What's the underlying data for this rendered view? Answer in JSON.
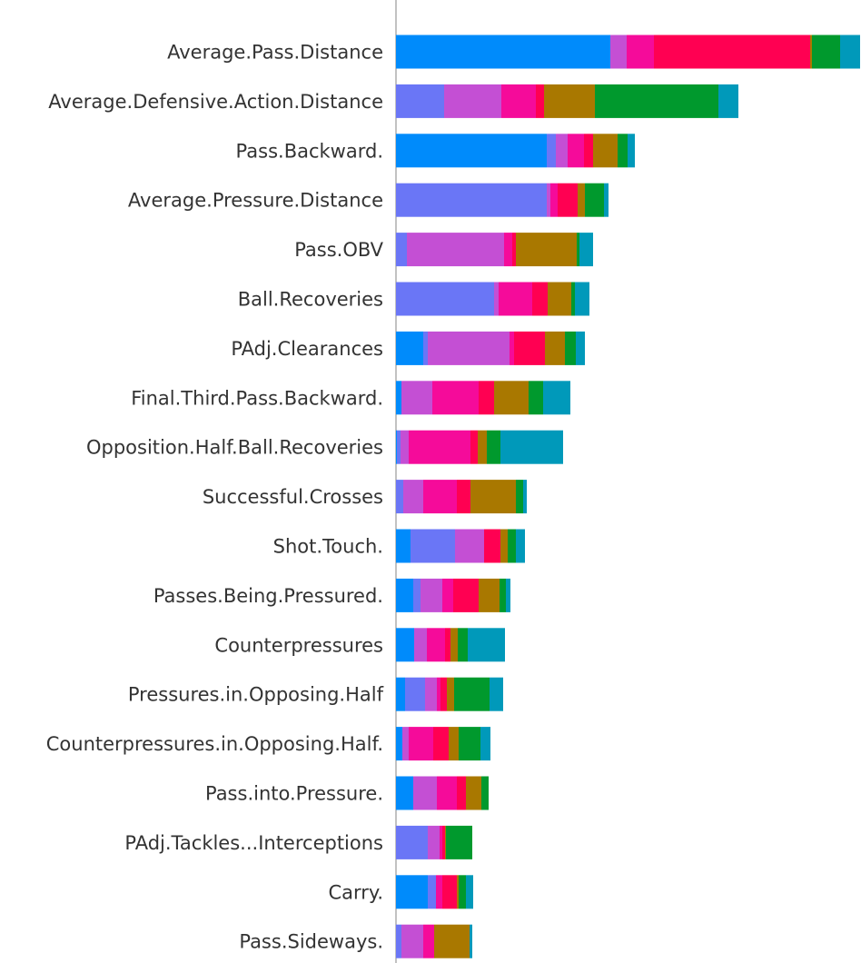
{
  "chart_data": {
    "type": "bar",
    "orientation": "horizontal",
    "stacked": true,
    "title": "",
    "xlabel": "",
    "ylabel": "",
    "xlim": [
      0,
      0.512
    ],
    "grid": false,
    "categories": [
      "Average.Pass.Distance",
      "Average.Defensive.Action.Distance",
      "Pass.Backward.",
      "Average.Pressure.Distance",
      "Pass.OBV",
      "Ball.Recoveries",
      "PAdj.Clearances",
      "Final.Third.Pass.Backward.",
      "Opposition.Half.Ball.Recoveries",
      "Successful.Crosses",
      "Shot.Touch.",
      "Passes.Being.Pressured.",
      "Counterpressures",
      "Pressures.in.Opposing.Half",
      "Counterpressures.in.Opposing.Half.",
      "Pass.into.Pressure.",
      "PAdj.Tackles...Interceptions",
      "Carry.",
      "Pass.Sideways."
    ],
    "series": [
      {
        "color": "#008bfb",
        "values": [
          0.236,
          0,
          0.166,
          0,
          0,
          0,
          0.03,
          0.006,
          0.001,
          0,
          0.016,
          0.019,
          0.02,
          0.01,
          0.007,
          0.019,
          0,
          0.035,
          0
        ]
      },
      {
        "color": "#6a76f6",
        "values": [
          0,
          0.053,
          0.01,
          0.166,
          0.012,
          0.108,
          0.005,
          0,
          0.004,
          0.008,
          0.049,
          0.008,
          0,
          0.022,
          0,
          0,
          0.035,
          0.009,
          0.006
        ]
      },
      {
        "color": "#c44fd4",
        "values": [
          0.018,
          0.063,
          0.013,
          0.004,
          0.107,
          0.005,
          0.09,
          0.034,
          0.009,
          0.022,
          0.032,
          0.024,
          0.014,
          0.013,
          0.007,
          0.026,
          0.013,
          0,
          0.024
        ]
      },
      {
        "color": "#f50b9a",
        "values": [
          0.03,
          0.038,
          0.018,
          0.008,
          0.009,
          0.037,
          0.005,
          0.051,
          0.068,
          0.037,
          0,
          0.012,
          0.02,
          0.004,
          0.027,
          0.022,
          0.003,
          0.007,
          0.012
        ]
      },
      {
        "color": "#ff0052",
        "values": [
          0.172,
          0.009,
          0.01,
          0.022,
          0.004,
          0.017,
          0.034,
          0.017,
          0.008,
          0.015,
          0.018,
          0.028,
          0.006,
          0.007,
          0.017,
          0.01,
          0.003,
          0.016,
          0
        ]
      },
      {
        "color": "#a97800",
        "values": [
          0.002,
          0.056,
          0.027,
          0.008,
          0.067,
          0.026,
          0.022,
          0.038,
          0.01,
          0.05,
          0.008,
          0.023,
          0.008,
          0.008,
          0.011,
          0.017,
          0.001,
          0.002,
          0.039
        ]
      },
      {
        "color": "#00992d",
        "values": [
          0.031,
          0.136,
          0.011,
          0.021,
          0.003,
          0.004,
          0.012,
          0.016,
          0.015,
          0.008,
          0.009,
          0.007,
          0.011,
          0.039,
          0.024,
          0.008,
          0.029,
          0.008,
          0
        ]
      },
      {
        "color": "#0099ba",
        "values": [
          0.022,
          0.022,
          0.008,
          0.005,
          0.015,
          0.016,
          0.01,
          0.03,
          0.069,
          0.004,
          0.01,
          0.005,
          0.041,
          0.015,
          0.011,
          0,
          0,
          0.008,
          0.003
        ]
      }
    ]
  }
}
